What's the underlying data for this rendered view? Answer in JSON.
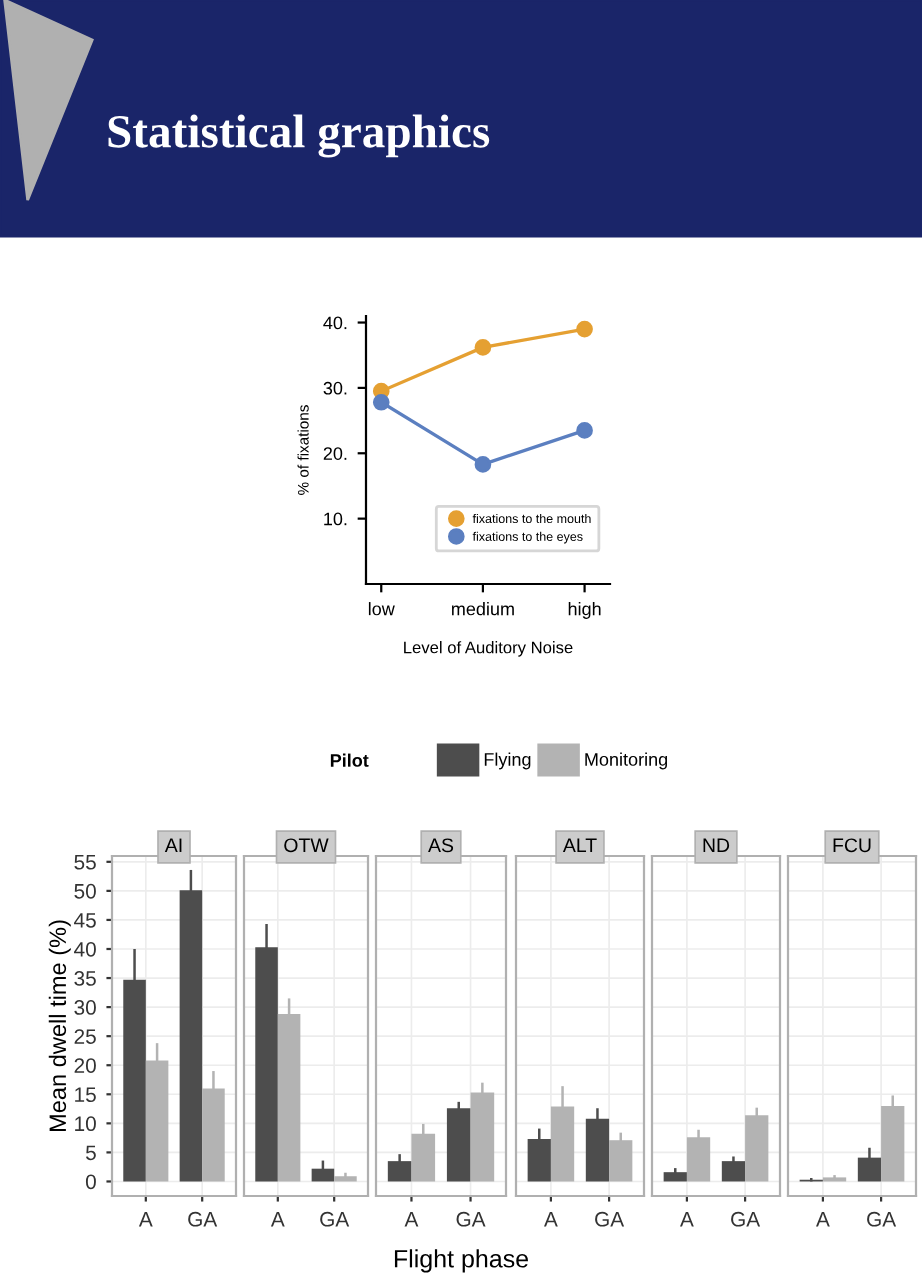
{
  "chart_data": [
    {
      "type": "line",
      "title": "Statistical graphics",
      "xlabel": "Level of Auditory Noise",
      "ylabel": "% of fixations",
      "categories": [
        "low",
        "medium",
        "high"
      ],
      "ylim": [
        0,
        41
      ],
      "yticks": [
        {
          "value": 10,
          "label": "10."
        },
        {
          "value": 20,
          "label": "20."
        },
        {
          "value": 30,
          "label": "30."
        },
        {
          "value": 40,
          "label": "40."
        }
      ],
      "marker": "circle",
      "grid": false,
      "legend": "bottom right",
      "series": [
        {
          "name": "fixations to the mouth",
          "color": "#e5a032",
          "values": [
            29.5,
            36.2,
            39
          ]
        },
        {
          "name": "fixations to the eyes",
          "color": "#5b7fc0",
          "values": [
            27.8,
            18.3,
            23.5
          ]
        }
      ]
    },
    {
      "type": "bar",
      "title": "AI",
      "ylabel": "Mean dwell time (%)",
      "legend_title": "Pilot",
      "legend": "top",
      "categories": [
        "A",
        "GA"
      ],
      "ylim": [
        -2.5,
        56
      ],
      "yticks": [
        0,
        5,
        10,
        15,
        20,
        25,
        30,
        35,
        40,
        45,
        50,
        55
      ],
      "grid": true,
      "series": [
        {
          "name": "Flying",
          "color": "#4d4d4d",
          "values": [
            34.7,
            50.1
          ],
          "errors": [
            5.3,
            3.5
          ]
        },
        {
          "name": "Monitoring",
          "color": "#b3b3b3",
          "values": [
            20.8,
            16
          ],
          "errors": [
            3,
            3
          ]
        }
      ]
    },
    {
      "type": "bar",
      "title": "OTW",
      "categories": [
        "A",
        "GA"
      ],
      "ylim": [
        -2.5,
        56
      ],
      "yticks": [
        0,
        5,
        10,
        15,
        20,
        25,
        30,
        35,
        40,
        45,
        50,
        55
      ],
      "grid": true,
      "tick_labels": "x",
      "series": [
        {
          "color": "#4d4d4d",
          "values": [
            40.3,
            2.2
          ],
          "errors": [
            4,
            1.4
          ]
        },
        {
          "color": "#b3b3b3",
          "values": [
            28.8,
            0.9
          ],
          "errors": [
            2.7,
            0.6
          ]
        }
      ]
    },
    {
      "type": "bar",
      "title": "AS",
      "categories": [
        "A",
        "GA"
      ],
      "ylim": [
        -2.5,
        56
      ],
      "yticks": [
        0,
        5,
        10,
        15,
        20,
        25,
        30,
        35,
        40,
        45,
        50,
        55
      ],
      "grid": true,
      "tick_labels": "x",
      "series": [
        {
          "color": "#4d4d4d",
          "values": [
            3.5,
            12.6
          ],
          "errors": [
            1.2,
            1.1
          ]
        },
        {
          "color": "#b3b3b3",
          "values": [
            8.2,
            15.3
          ],
          "errors": [
            1.7,
            1.7
          ]
        }
      ]
    },
    {
      "type": "bar",
      "title": "ALT",
      "xlabel": "Flight phase",
      "categories": [
        "A",
        "GA"
      ],
      "ylim": [
        -2.5,
        56
      ],
      "yticks": [
        0,
        5,
        10,
        15,
        20,
        25,
        30,
        35,
        40,
        45,
        50,
        55
      ],
      "grid": true,
      "tick_labels": "x",
      "series": [
        {
          "color": "#4d4d4d",
          "values": [
            7.3,
            10.8
          ],
          "errors": [
            1.8,
            1.8
          ]
        },
        {
          "color": "#b3b3b3",
          "values": [
            12.9,
            7.1
          ],
          "errors": [
            3.5,
            1.3
          ]
        }
      ]
    },
    {
      "type": "bar",
      "title": "ND",
      "categories": [
        "A",
        "GA"
      ],
      "ylim": [
        -2.5,
        56
      ],
      "yticks": [
        0,
        5,
        10,
        15,
        20,
        25,
        30,
        35,
        40,
        45,
        50,
        55
      ],
      "grid": true,
      "tick_labels": "x",
      "series": [
        {
          "color": "#4d4d4d",
          "values": [
            1.6,
            3.5
          ],
          "errors": [
            0.7,
            0.8
          ]
        },
        {
          "color": "#b3b3b3",
          "values": [
            7.6,
            11.4
          ],
          "errors": [
            1.3,
            1.3
          ]
        }
      ]
    },
    {
      "type": "bar",
      "title": "FCU",
      "categories": [
        "A",
        "GA"
      ],
      "ylim": [
        -2.5,
        56
      ],
      "yticks": [
        0,
        5,
        10,
        15,
        20,
        25,
        30,
        35,
        40,
        45,
        50,
        55
      ],
      "grid": true,
      "tick_labels": "x",
      "series": [
        {
          "color": "#4d4d4d",
          "values": [
            0.3,
            4.1
          ],
          "errors": [
            0.3,
            1.7
          ]
        },
        {
          "color": "#b3b3b3",
          "values": [
            0.7,
            13
          ],
          "errors": [
            0.4,
            1.8
          ]
        }
      ]
    }
  ]
}
